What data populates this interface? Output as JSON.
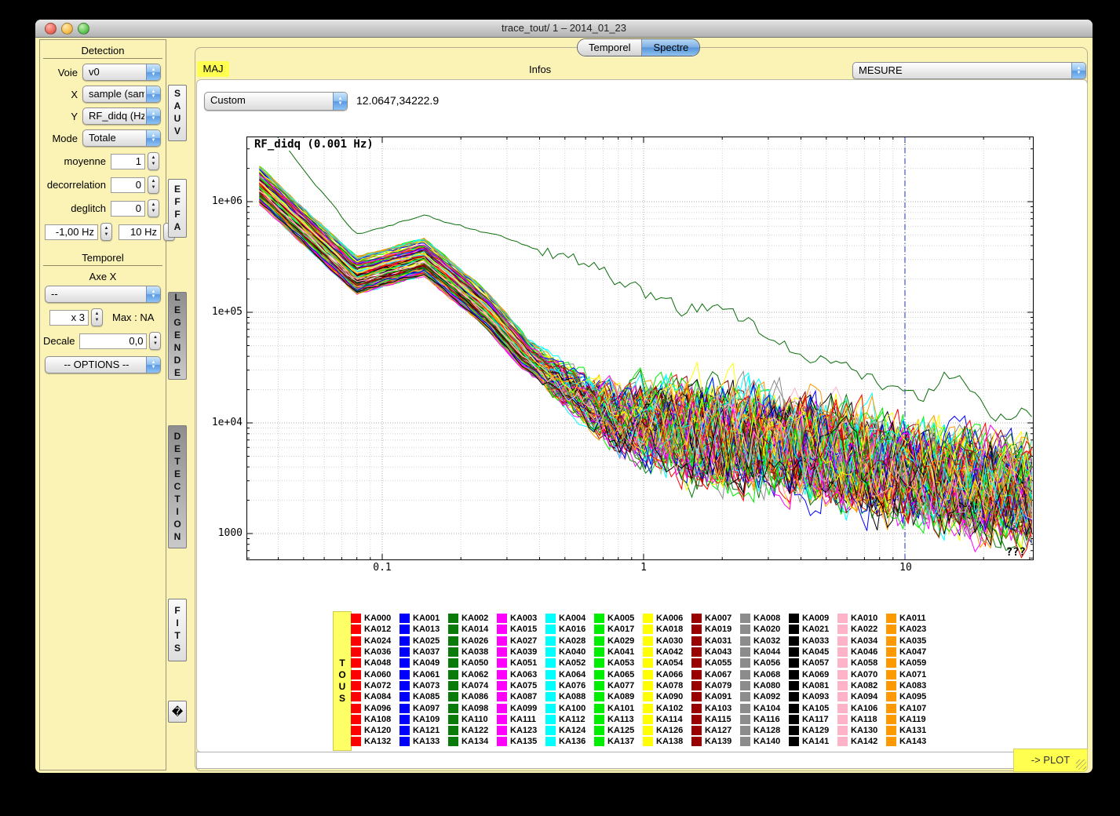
{
  "window": {
    "title": "trace_tout/ 1 – 2014_01_23"
  },
  "tabs": [
    {
      "label": "Temporel",
      "selected": false
    },
    {
      "label": "Spectre",
      "selected": true
    }
  ],
  "toolbar": {
    "maj": "MAJ",
    "infos": "Infos",
    "mesure_value": "MESURE"
  },
  "plot_header": {
    "scale_value": "Custom",
    "coords": "12.0647,34222.9"
  },
  "sidebar": {
    "detection_title": "Detection",
    "voie": {
      "label": "Voie",
      "value": "v0"
    },
    "x": {
      "label": "X",
      "value": "sample (sampl"
    },
    "y": {
      "label": "Y",
      "value": "RF_didq (Hz)"
    },
    "mode": {
      "label": "Mode",
      "value": "Totale"
    },
    "moyenne": {
      "label": "moyenne",
      "value": "1"
    },
    "decorrelation": {
      "label": "decorrelation",
      "value": "0"
    },
    "deglitch": {
      "label": "deglitch",
      "value": "0"
    },
    "freq_min": "-1,00 Hz",
    "freq_max": "10 Hz",
    "temporel_title": "Temporel",
    "axe_x_label": "Axe X",
    "axe_x_value": "--",
    "mult_value": "x 3",
    "max_label": "Max : NA",
    "decale": {
      "label": "Decale",
      "value": "0,0"
    },
    "options_value": "-- OPTIONS --"
  },
  "side_tabs": [
    {
      "label": "SAUV"
    },
    {
      "label": "EFFA"
    },
    {
      "label": "LEGENDE"
    },
    {
      "label": "DETECTION"
    },
    {
      "label": "FITS"
    },
    {
      "label": "�"
    }
  ],
  "chart": {
    "type": "line",
    "title": "RF_didq (0.001 Hz)",
    "x_ticks": [
      "0.1",
      "1",
      "10"
    ],
    "y_ticks": [
      "1e+06",
      "1e+05",
      "1e+04",
      "1000"
    ],
    "x_range_hz": [
      0.03,
      30
    ],
    "y_range": [
      600,
      3900000
    ],
    "marker_line_x": "10",
    "overflow": "???",
    "series_count": 144
  },
  "legend": {
    "tous": "TOUS",
    "columns": [
      {
        "color": "#ff0000",
        "items": [
          "KA000",
          "KA012",
          "KA024",
          "KA036",
          "KA048",
          "KA060",
          "KA072",
          "KA084",
          "KA096",
          "KA108",
          "KA120",
          "KA132"
        ]
      },
      {
        "color": "#0000ff",
        "items": [
          "KA001",
          "KA013",
          "KA025",
          "KA037",
          "KA049",
          "KA061",
          "KA073",
          "KA085",
          "KA097",
          "KA109",
          "KA121",
          "KA133"
        ]
      },
      {
        "color": "#0a7a0a",
        "items": [
          "KA002",
          "KA014",
          "KA026",
          "KA038",
          "KA050",
          "KA062",
          "KA074",
          "KA086",
          "KA098",
          "KA110",
          "KA122",
          "KA134"
        ]
      },
      {
        "color": "#ff00ff",
        "items": [
          "KA003",
          "KA015",
          "KA027",
          "KA039",
          "KA051",
          "KA063",
          "KA075",
          "KA087",
          "KA099",
          "KA111",
          "KA123",
          "KA135"
        ]
      },
      {
        "color": "#00ffff",
        "items": [
          "KA004",
          "KA016",
          "KA028",
          "KA040",
          "KA052",
          "KA064",
          "KA076",
          "KA088",
          "KA100",
          "KA112",
          "KA124",
          "KA136"
        ]
      },
      {
        "color": "#00ee00",
        "items": [
          "KA005",
          "KA017",
          "KA029",
          "KA041",
          "KA053",
          "KA065",
          "KA077",
          "KA089",
          "KA101",
          "KA113",
          "KA125",
          "KA137"
        ]
      },
      {
        "color": "#ffff00",
        "items": [
          "KA006",
          "KA018",
          "KA030",
          "KA042",
          "KA054",
          "KA066",
          "KA078",
          "KA090",
          "KA102",
          "KA114",
          "KA126",
          "KA138"
        ]
      },
      {
        "color": "#990000",
        "items": [
          "KA007",
          "KA019",
          "KA031",
          "KA043",
          "KA055",
          "KA067",
          "KA079",
          "KA091",
          "KA103",
          "KA115",
          "KA127",
          "KA139"
        ]
      },
      {
        "color": "#8c8c8c",
        "items": [
          "KA008",
          "KA020",
          "KA032",
          "KA044",
          "KA056",
          "KA068",
          "KA080",
          "KA092",
          "KA104",
          "KA116",
          "KA128",
          "KA140"
        ]
      },
      {
        "color": "#000000",
        "items": [
          "KA009",
          "KA021",
          "KA033",
          "KA045",
          "KA057",
          "KA069",
          "KA081",
          "KA093",
          "KA105",
          "KA117",
          "KA129",
          "KA141"
        ]
      },
      {
        "color": "#ffb3c8",
        "items": [
          "KA010",
          "KA022",
          "KA034",
          "KA046",
          "KA058",
          "KA070",
          "KA082",
          "KA094",
          "KA106",
          "KA118",
          "KA130",
          "KA142"
        ]
      },
      {
        "color": "#ff9900",
        "items": [
          "KA011",
          "KA023",
          "KA035",
          "KA047",
          "KA059",
          "KA071",
          "KA083",
          "KA095",
          "KA107",
          "KA119",
          "KA131",
          "KA143"
        ]
      }
    ]
  },
  "bottom": {
    "command_value": "",
    "plot_label": "-> PLOT"
  }
}
